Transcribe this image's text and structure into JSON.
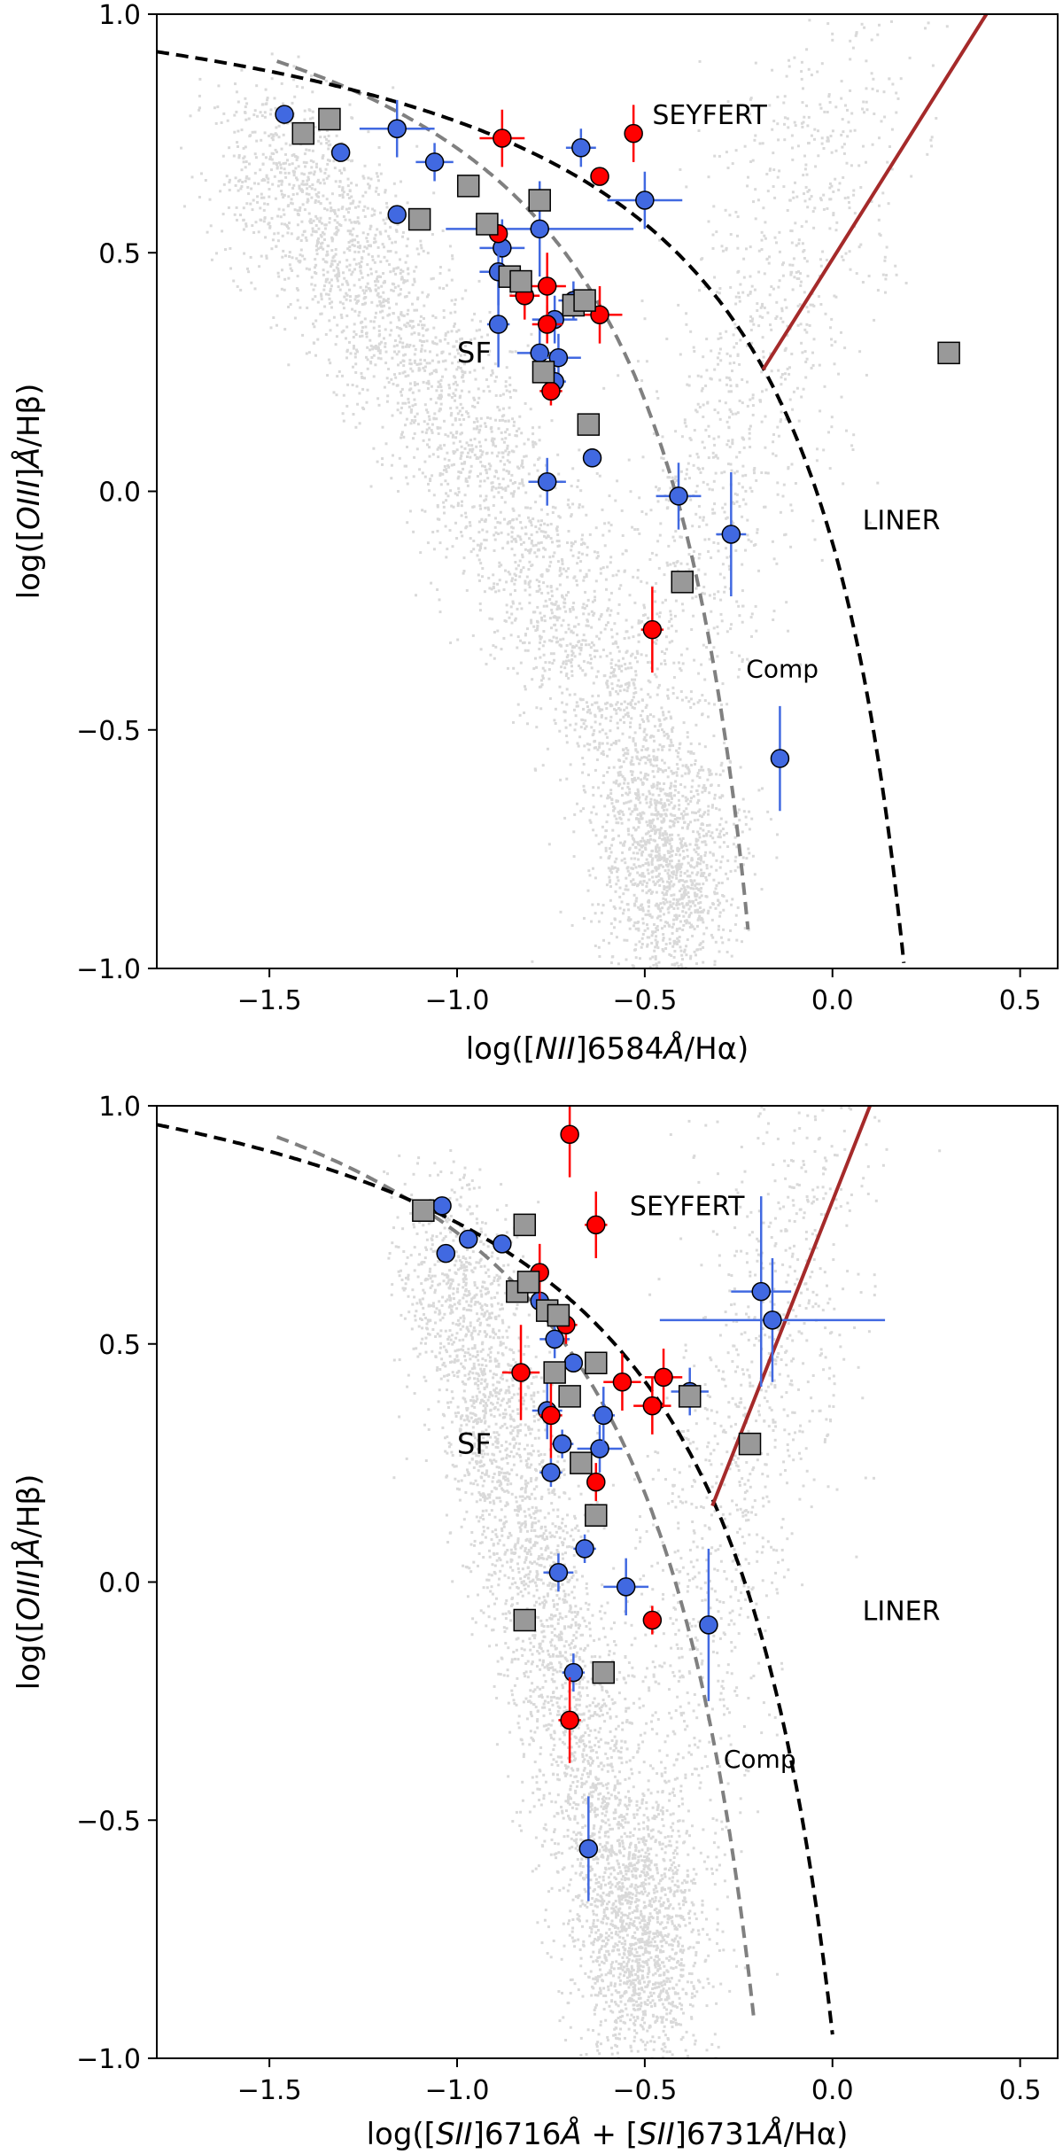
{
  "chart_data": [
    {
      "type": "scatter",
      "title": "",
      "xlabel": {
        "pre": "log([",
        "ion": "NII",
        "post": "]6584",
        "ang": "Å",
        "tail": "/Hα)"
      },
      "ylabel": {
        "pre": "log([",
        "ion": "OIII",
        "post": "]",
        "ang": "Å",
        "tail": "/Hβ)"
      },
      "xlim": [
        -1.8,
        0.6
      ],
      "ylim": [
        -1.0,
        1.0
      ],
      "xticks": [
        -1.5,
        -1.0,
        -0.5,
        0.0,
        0.5
      ],
      "xtick_labels": [
        "−1.5",
        "−1.0",
        "−0.5",
        "0.0",
        "0.5"
      ],
      "yticks": [
        -1.0,
        -0.5,
        0.0,
        0.5,
        1.0
      ],
      "ytick_labels": [
        "−1.0",
        "−0.5",
        "0.0",
        "0.5",
        "1.0"
      ],
      "region_labels": [
        {
          "text": "SEYFERT",
          "x": -0.48,
          "y": 0.77,
          "size": 30
        },
        {
          "text": "SF",
          "x": -1.0,
          "y": 0.27,
          "size": 32
        },
        {
          "text": "LINER",
          "x": 0.08,
          "y": -0.08,
          "size": 30
        },
        {
          "text": "Comp",
          "x": -0.23,
          "y": -0.39,
          "size": 28
        }
      ],
      "lines": {
        "kewley": {
          "color": "#000000",
          "style": "dashed"
        },
        "kauffmann": {
          "color": "#808080",
          "style": "dashed"
        },
        "seyfert_liner": {
          "color": "#a52a2a",
          "x": [
            -0.185,
            0.41
          ],
          "y": [
            0.255,
            1.0
          ]
        }
      },
      "series": [
        {
          "name": "blue",
          "marker": "circle",
          "color": "#4169e1",
          "points": [
            [
              -1.46,
              0.79,
              0,
              0
            ],
            [
              -1.31,
              0.71,
              0,
              0
            ],
            [
              -1.16,
              0.76,
              0.1,
              0.06
            ],
            [
              -1.06,
              0.69,
              0.05,
              0.04
            ],
            [
              -1.16,
              0.58,
              0,
              0
            ],
            [
              -0.88,
              0.51,
              0.06,
              0.06
            ],
            [
              -0.89,
              0.46,
              0.05,
              0.07
            ],
            [
              -0.78,
              0.55,
              0.25,
              0.1
            ],
            [
              -0.89,
              0.35,
              0.03,
              0.09
            ],
            [
              -0.78,
              0.29,
              0.06,
              0.06
            ],
            [
              -0.74,
              0.36,
              0.06,
              0.05
            ],
            [
              -0.73,
              0.28,
              0.06,
              0.05
            ],
            [
              -0.74,
              0.23,
              0.03,
              0.03
            ],
            [
              -0.69,
              0.4,
              0.04,
              0.04
            ],
            [
              -0.64,
              0.07,
              0.02,
              0.02
            ],
            [
              -0.76,
              0.02,
              0.05,
              0.05
            ],
            [
              -0.67,
              0.72,
              0.04,
              0.04
            ],
            [
              -0.5,
              0.61,
              0.1,
              0.06
            ],
            [
              -0.41,
              -0.01,
              0.06,
              0.07
            ],
            [
              -0.27,
              -0.09,
              0.04,
              0.13
            ],
            [
              -0.14,
              -0.56,
              0.02,
              0.11
            ]
          ]
        },
        {
          "name": "red",
          "marker": "circle",
          "color": "#ff0000",
          "points": [
            [
              -0.88,
              0.74,
              0.06,
              0.06
            ],
            [
              -0.89,
              0.54,
              0,
              0
            ],
            [
              -0.76,
              0.43,
              0.05,
              0.07
            ],
            [
              -0.82,
              0.41,
              0.04,
              0.05
            ],
            [
              -0.76,
              0.35,
              0.04,
              0.04
            ],
            [
              -0.75,
              0.21,
              0.03,
              0.03
            ],
            [
              -0.62,
              0.37,
              0.06,
              0.06
            ],
            [
              -0.53,
              0.75,
              0.01,
              0.06
            ],
            [
              -0.62,
              0.66,
              0,
              0
            ],
            [
              -0.48,
              -0.29,
              0.03,
              0.09
            ]
          ]
        },
        {
          "name": "gray",
          "marker": "square",
          "color": "#999999",
          "points": [
            [
              -1.41,
              0.75,
              0,
              0
            ],
            [
              -1.34,
              0.78,
              0,
              0
            ],
            [
              -1.1,
              0.57,
              0,
              0
            ],
            [
              -0.97,
              0.64,
              0,
              0
            ],
            [
              -0.92,
              0.56,
              0,
              0
            ],
            [
              -0.78,
              0.61,
              0,
              0
            ],
            [
              -0.86,
              0.45,
              0,
              0
            ],
            [
              -0.83,
              0.44,
              0,
              0
            ],
            [
              -0.69,
              0.39,
              0,
              0
            ],
            [
              -0.66,
              0.4,
              0,
              0
            ],
            [
              -0.77,
              0.25,
              0,
              0
            ],
            [
              -0.65,
              0.14,
              0,
              0
            ],
            [
              -0.4,
              -0.19,
              0,
              0
            ],
            [
              0.31,
              0.29,
              0,
              0
            ]
          ]
        }
      ]
    },
    {
      "type": "scatter",
      "title": "",
      "xlabel": {
        "pre": "log([",
        "ion": "SII",
        "mid": "]6716",
        "ang": "Å",
        "plus": " + [",
        "ion2": "SII",
        "post": "]6731",
        "ang2": "Å",
        "tail": "/Hα)"
      },
      "ylabel": {
        "pre": "log([",
        "ion": "OIII",
        "post": "]",
        "ang": "Å",
        "tail": "/Hβ)"
      },
      "xlim": [
        -1.8,
        0.6
      ],
      "ylim": [
        -1.0,
        1.0
      ],
      "xticks": [
        -1.5,
        -1.0,
        -0.5,
        0.0,
        0.5
      ],
      "xtick_labels": [
        "−1.5",
        "−1.0",
        "−0.5",
        "0.0",
        "0.5"
      ],
      "yticks": [
        -1.0,
        -0.5,
        0.0,
        0.5,
        1.0
      ],
      "ytick_labels": [
        "−1.0",
        "−0.5",
        "0.0",
        "0.5",
        "1.0"
      ],
      "region_labels": [
        {
          "text": "SEYFERT",
          "x": -0.54,
          "y": 0.77,
          "size": 30
        },
        {
          "text": "SF",
          "x": -1.0,
          "y": 0.27,
          "size": 32
        },
        {
          "text": "LINER",
          "x": 0.08,
          "y": -0.08,
          "size": 30
        },
        {
          "text": "Comp",
          "x": -0.29,
          "y": -0.39,
          "size": 28
        }
      ],
      "lines": {
        "kewley": {
          "color": "#000000",
          "style": "dashed"
        },
        "kauffmann": {
          "color": "#808080",
          "style": "dashed"
        },
        "seyfert_liner": {
          "color": "#a52a2a",
          "x": [
            -0.32,
            0.1
          ],
          "y": [
            0.16,
            1.0
          ]
        }
      },
      "series": [
        {
          "name": "blue",
          "marker": "circle",
          "color": "#4169e1",
          "points": [
            [
              -1.04,
              0.79,
              0,
              0
            ],
            [
              -0.97,
              0.72,
              0,
              0
            ],
            [
              -1.03,
              0.69,
              0,
              0
            ],
            [
              -0.88,
              0.71,
              0,
              0
            ],
            [
              -0.78,
              0.59,
              0,
              0
            ],
            [
              -0.74,
              0.51,
              0.04,
              0.04
            ],
            [
              -0.69,
              0.46,
              0,
              0
            ],
            [
              -0.76,
              0.36,
              0.04,
              0.06
            ],
            [
              -0.72,
              0.29,
              0.03,
              0.03
            ],
            [
              -0.75,
              0.23,
              0.03,
              0.03
            ],
            [
              -0.62,
              0.28,
              0.06,
              0.05
            ],
            [
              -0.61,
              0.35,
              0.03,
              0.06
            ],
            [
              -0.66,
              0.07,
              0.03,
              0.03
            ],
            [
              -0.73,
              0.02,
              0.04,
              0.04
            ],
            [
              -0.55,
              -0.01,
              0.06,
              0.06
            ],
            [
              -0.38,
              0.4,
              0.05,
              0.05
            ],
            [
              -0.33,
              -0.09,
              0.02,
              0.16
            ],
            [
              -0.19,
              0.61,
              0.08,
              0.2
            ],
            [
              -0.16,
              0.55,
              0.3,
              0.13
            ],
            [
              -0.69,
              -0.19,
              0.03,
              0.04
            ],
            [
              -0.65,
              -0.56,
              0.02,
              0.11
            ]
          ]
        },
        {
          "name": "red",
          "marker": "circle",
          "color": "#ff0000",
          "points": [
            [
              -0.7,
              0.94,
              0.02,
              0.09
            ],
            [
              -0.63,
              0.75,
              0.03,
              0.07
            ],
            [
              -0.78,
              0.65,
              0.02,
              0.06
            ],
            [
              -0.83,
              0.44,
              0.05,
              0.1
            ],
            [
              -0.75,
              0.35,
              0.03,
              0.09
            ],
            [
              -0.71,
              0.54,
              0.03,
              0.04
            ],
            [
              -0.63,
              0.21,
              0.02,
              0.04
            ],
            [
              -0.56,
              0.42,
              0.05,
              0.06
            ],
            [
              -0.48,
              0.37,
              0.05,
              0.06
            ],
            [
              -0.45,
              0.43,
              0.05,
              0.06
            ],
            [
              -0.48,
              -0.08,
              0.02,
              0.03
            ],
            [
              -0.7,
              -0.29,
              0.03,
              0.09
            ]
          ]
        },
        {
          "name": "gray",
          "marker": "square",
          "color": "#999999",
          "points": [
            [
              -1.09,
              0.78,
              0,
              0
            ],
            [
              -0.82,
              0.75,
              0,
              0
            ],
            [
              -0.84,
              0.61,
              0,
              0
            ],
            [
              -0.81,
              0.63,
              0,
              0
            ],
            [
              -0.76,
              0.57,
              0,
              0
            ],
            [
              -0.73,
              0.56,
              0,
              0
            ],
            [
              -0.74,
              0.44,
              0,
              0
            ],
            [
              -0.7,
              0.39,
              0,
              0
            ],
            [
              -0.63,
              0.46,
              0,
              0
            ],
            [
              -0.67,
              0.25,
              0,
              0
            ],
            [
              -0.63,
              0.14,
              0,
              0
            ],
            [
              -0.38,
              0.39,
              0,
              0
            ],
            [
              -0.22,
              0.29,
              0,
              0
            ],
            [
              -0.82,
              -0.08,
              0,
              0
            ],
            [
              -0.61,
              -0.19,
              0,
              0
            ]
          ]
        }
      ]
    }
  ]
}
